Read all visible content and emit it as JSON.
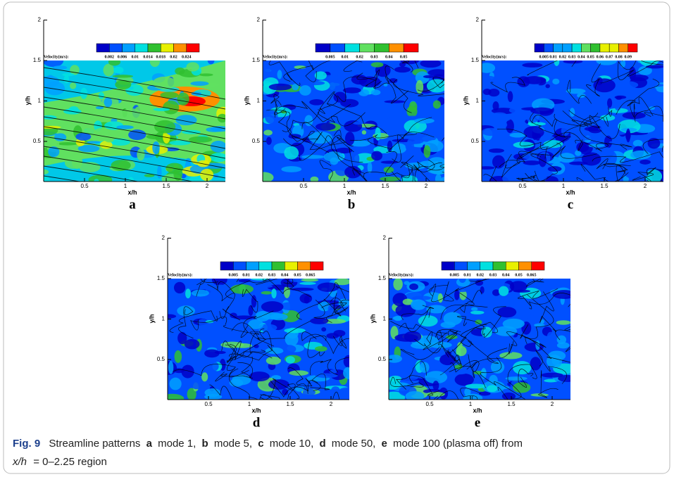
{
  "panels": [
    {
      "letter": "a",
      "colorbar_label": "Velocity(m/s):",
      "colorbar_ticks": [
        "0.002",
        "0.006",
        "0.01",
        "0.014",
        "0.018",
        "0.02",
        "0.024"
      ],
      "x_label": "x/h",
      "y_label": "y/h",
      "xticks": [
        "0.5",
        "1",
        "1.5",
        "2"
      ],
      "yticks": [
        "0.5",
        "1",
        "1.5",
        "2"
      ]
    },
    {
      "letter": "b",
      "colorbar_label": "Velocity(m/s):",
      "colorbar_ticks": [
        "0.005",
        "0.01",
        "0.02",
        "0.03",
        "0.04",
        "0.05"
      ],
      "x_label": "x/h",
      "y_label": "y/h",
      "xticks": [
        "0.5",
        "1",
        "1.5",
        "2"
      ],
      "yticks": [
        "0.5",
        "1",
        "1.5",
        "2"
      ]
    },
    {
      "letter": "c",
      "colorbar_label": "Velocity(m/s):",
      "colorbar_ticks": [
        "0.005",
        "0.01",
        "0.02",
        "0.03",
        "0.04",
        "0.05",
        "0.06",
        "0.07",
        "0.08",
        "0.09"
      ],
      "x_label": "x/h",
      "y_label": "y/h",
      "xticks": [
        "0.5",
        "1",
        "1.5",
        "2"
      ],
      "yticks": [
        "0.5",
        "1",
        "1.5",
        "2"
      ]
    },
    {
      "letter": "d",
      "colorbar_label": "Velocity(m/s):",
      "colorbar_ticks": [
        "0.005",
        "0.01",
        "0.02",
        "0.03",
        "0.04",
        "0.05",
        "0.065"
      ],
      "x_label": "x/h",
      "y_label": "y/h",
      "xticks": [
        "0.5",
        "1",
        "1.5",
        "2"
      ],
      "yticks": [
        "0.5",
        "1",
        "1.5",
        "2"
      ]
    },
    {
      "letter": "e",
      "colorbar_label": "Velocity(m/s):",
      "colorbar_ticks": [
        "0.005",
        "0.01",
        "0.02",
        "0.03",
        "0.04",
        "0.05",
        "0.065"
      ],
      "x_label": "x/h",
      "y_label": "y/h",
      "xticks": [
        "0.5",
        "1",
        "1.5",
        "2"
      ],
      "yticks": [
        "0.5",
        "1",
        "1.5",
        "2"
      ]
    }
  ],
  "caption": {
    "label": "Fig. 9",
    "intro": "Streamline patterns",
    "items": [
      {
        "letter": "a",
        "text": "mode 1,"
      },
      {
        "letter": "b",
        "text": "mode 5,"
      },
      {
        "letter": "c",
        "text": "mode 10,"
      },
      {
        "letter": "d",
        "text": "mode 50,"
      },
      {
        "letter": "e",
        "text": "mode 100 (plasma off) from"
      }
    ],
    "math": "x/h",
    "tail": "= 0–2.25 region"
  }
}
